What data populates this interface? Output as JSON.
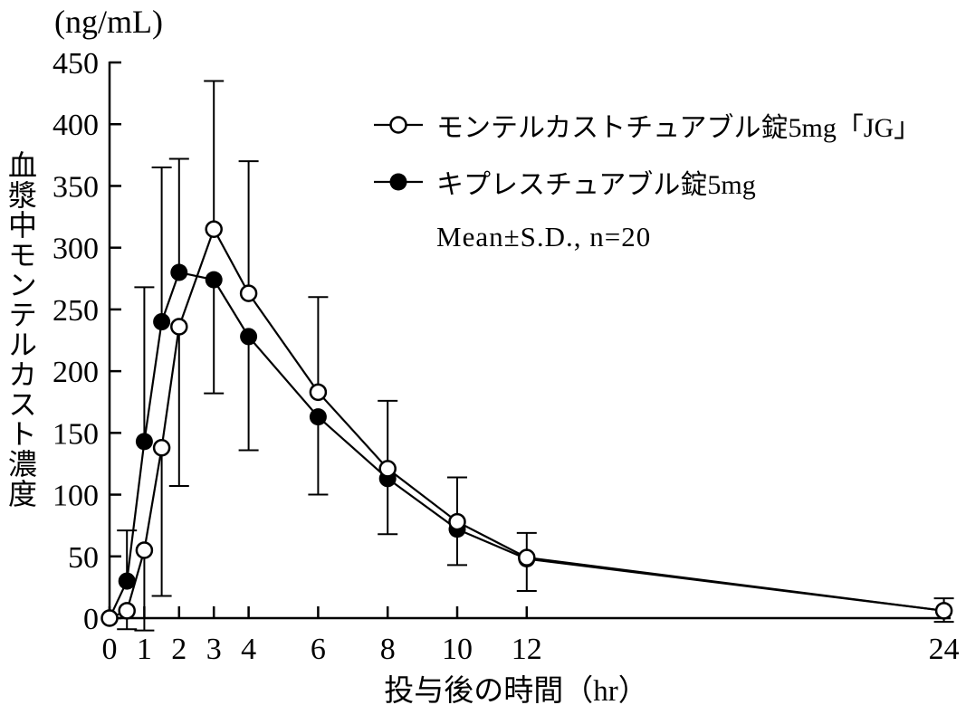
{
  "chart_data": {
    "type": "line",
    "y_unit": "(ng/mL)",
    "ylabel": "血漿中モンテルカスト濃度",
    "xlabel": "投与後の時間（hr）",
    "note": "Mean±S.D., n=20",
    "grid": false,
    "legend_position": "upper-right-inside",
    "ylim": [
      0,
      450
    ],
    "yticks": [
      0,
      50,
      100,
      150,
      200,
      250,
      300,
      350,
      400,
      450
    ],
    "xticks": [
      0,
      1,
      2,
      3,
      4,
      6,
      8,
      10,
      12,
      24
    ],
    "x_hours": [
      0,
      0.5,
      1,
      1.5,
      2,
      3,
      4,
      6,
      8,
      10,
      12,
      24
    ],
    "series": [
      {
        "name": "モンテルカストチュアブル錠5mg「JG」",
        "marker": "open-circle",
        "color": "#000000",
        "values": [
          0,
          6,
          55,
          138,
          236,
          315,
          263,
          183,
          121,
          78,
          49,
          6
        ],
        "err_up": [
          null,
          null,
          null,
          null,
          null,
          435,
          370,
          260,
          176,
          114,
          69,
          16
        ],
        "err_down": [
          null,
          -9,
          -10,
          18,
          107,
          null,
          null,
          null,
          null,
          null,
          null,
          -3
        ]
      },
      {
        "name": "キプレスチュアブル錠5mg",
        "marker": "filled-circle",
        "color": "#000000",
        "values": [
          0,
          30,
          143,
          240,
          280,
          274,
          228,
          163,
          113,
          72,
          48,
          6
        ],
        "err_up": [
          null,
          71,
          268,
          365,
          372,
          null,
          null,
          null,
          null,
          null,
          null,
          null
        ],
        "err_down": [
          null,
          null,
          null,
          null,
          null,
          182,
          136,
          100,
          68,
          43,
          22,
          null
        ]
      }
    ]
  }
}
